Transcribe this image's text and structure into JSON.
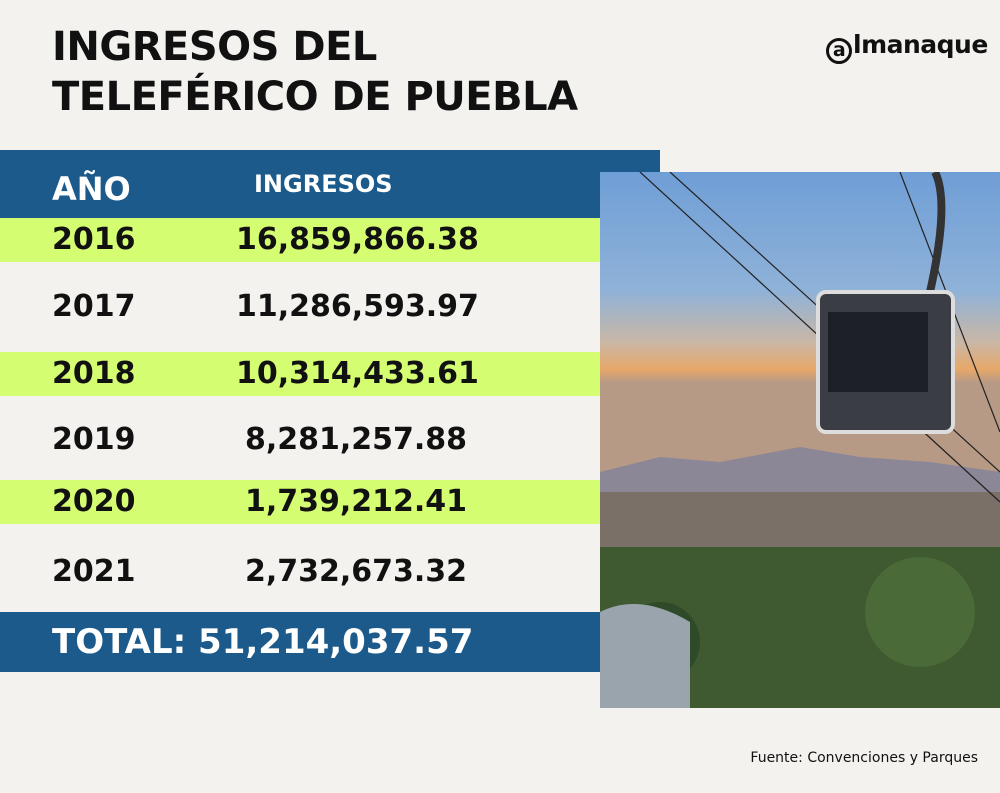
{
  "title_lines": [
    "INGRESOS DEL",
    "TELEFÉRICO DE PUEBLA"
  ],
  "logo": "almanaque",
  "colors": {
    "header": "#1b5a8a",
    "highlight_row": "#d5fd72"
  },
  "chart_data": {
    "type": "table",
    "columns": [
      "AÑO",
      "INGRESOS"
    ],
    "rows": [
      {
        "year": "2016",
        "value": "16,859,866.38"
      },
      {
        "year": "2017",
        "value": "11,286,593.97"
      },
      {
        "year": "2018",
        "value": "10,314,433.61"
      },
      {
        "year": "2019",
        "value": "8,281,257.88"
      },
      {
        "year": "2020",
        "value": "1,739,212.41"
      },
      {
        "year": "2021",
        "value": "2,732,673.32"
      }
    ],
    "total": "TOTAL: 51,214,037.57"
  },
  "source": "Fuente: Convenciones y Parques"
}
